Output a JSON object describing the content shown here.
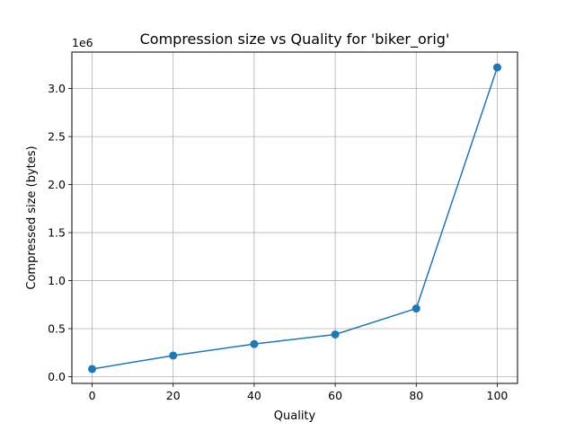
{
  "chart_data": {
    "type": "line",
    "title": "Compression size vs Quality for 'biker_orig'",
    "xlabel": "Quality",
    "ylabel": "Compressed size (bytes)",
    "y_offset_label": "1e6",
    "x": [
      0,
      20,
      40,
      60,
      80,
      100
    ],
    "series": [
      {
        "values": [
          0.08,
          0.22,
          0.34,
          0.44,
          0.71,
          3.22
        ]
      }
    ],
    "xlim": [
      -5,
      105
    ],
    "ylim": [
      -0.07,
      3.38
    ],
    "x_ticks": [
      0,
      20,
      40,
      60,
      80,
      100
    ],
    "x_tick_labels": [
      "0",
      "20",
      "40",
      "60",
      "80",
      "100"
    ],
    "y_ticks": [
      0.0,
      0.5,
      1.0,
      1.5,
      2.0,
      2.5,
      3.0
    ],
    "y_tick_labels": [
      "0.0",
      "0.5",
      "1.0",
      "1.5",
      "2.0",
      "2.5",
      "3.0"
    ],
    "grid": true,
    "legend": "none",
    "colors": {
      "line": "#1f77b4",
      "grid": "#b0b0b0",
      "axes": "#000000"
    },
    "markers": "circle"
  }
}
